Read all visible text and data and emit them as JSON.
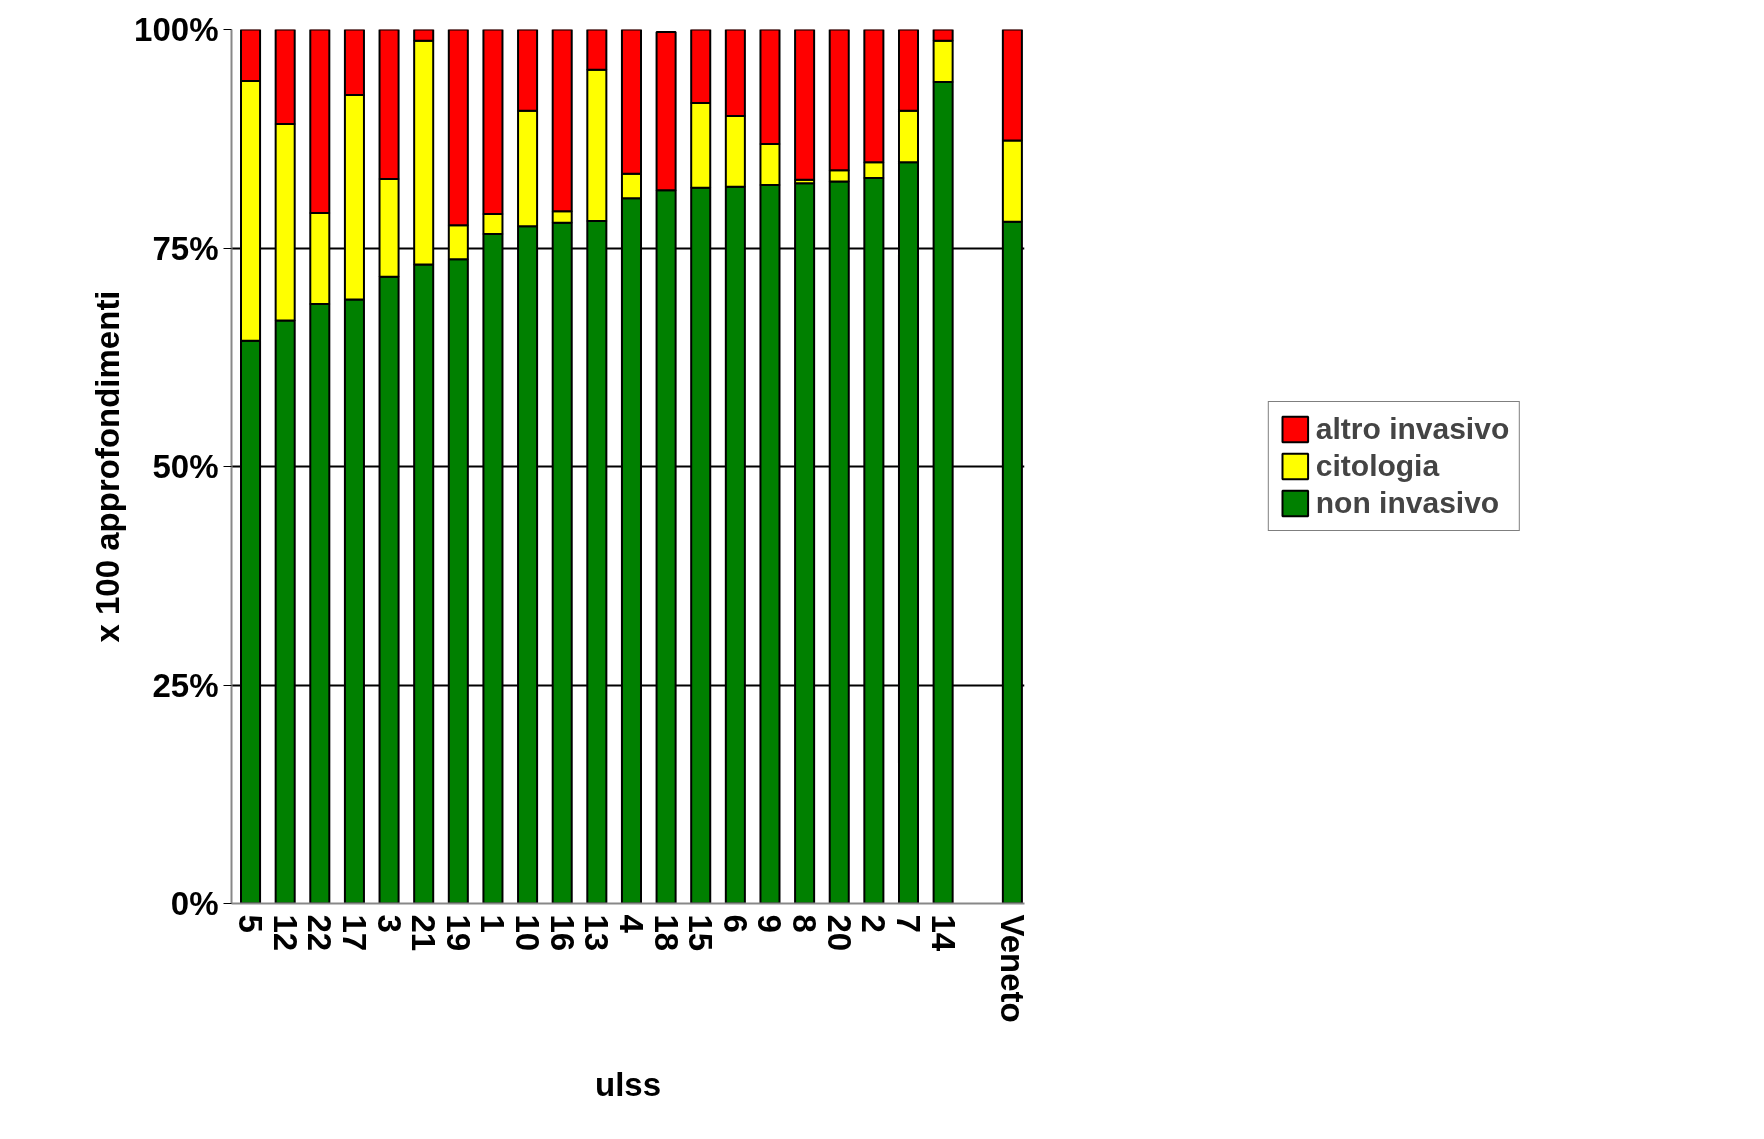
{
  "chart_data": {
    "type": "bar",
    "stacked": true,
    "xlabel": "ulss",
    "ylabel": "x 100 approfondimenti",
    "categories": [
      "5",
      "12",
      "22",
      "17",
      "3",
      "21",
      "19",
      "1",
      "10",
      "16",
      "13",
      "4",
      "18",
      "15",
      "6",
      "9",
      "8",
      "20",
      "2",
      "7",
      "14",
      null,
      "Veneto"
    ],
    "series": [
      {
        "name": "non invasivo",
        "color": "#008000",
        "values": [
          64.4,
          66.7,
          68.6,
          69.1,
          71.7,
          73.1,
          73.7,
          76.6,
          77.5,
          77.9,
          78.1,
          80.7,
          81.6,
          81.9,
          82.0,
          82.2,
          82.4,
          82.6,
          83.0,
          84.8,
          94.0,
          null,
          78.0
        ]
      },
      {
        "name": "citologia",
        "color": "#ffff00",
        "values": [
          29.7,
          22.5,
          10.4,
          23.4,
          11.2,
          25.6,
          3.9,
          2.3,
          13.2,
          1.3,
          17.3,
          2.8,
          null,
          9.7,
          8.1,
          4.7,
          0.4,
          1.3,
          1.8,
          5.9,
          4.7,
          null,
          9.3
        ]
      },
      {
        "name": "altro invasivo",
        "color": "#ff0000",
        "values": [
          5.9,
          10.8,
          21.0,
          7.5,
          17.1,
          1.3,
          22.4,
          21.1,
          9.3,
          20.8,
          4.6,
          16.5,
          18.1,
          8.4,
          9.9,
          13.1,
          17.2,
          16.1,
          15.2,
          9.3,
          1.3,
          null,
          12.7
        ]
      }
    ],
    "ylim": [
      0,
      100
    ],
    "yticks": [
      {
        "value": 0,
        "label": "0%"
      },
      {
        "value": 25,
        "label": "25%"
      },
      {
        "value": 50,
        "label": "50%"
      },
      {
        "value": 75,
        "label": "75%"
      },
      {
        "value": 100,
        "label": "100%"
      }
    ],
    "grid": "y",
    "legend": "right"
  }
}
